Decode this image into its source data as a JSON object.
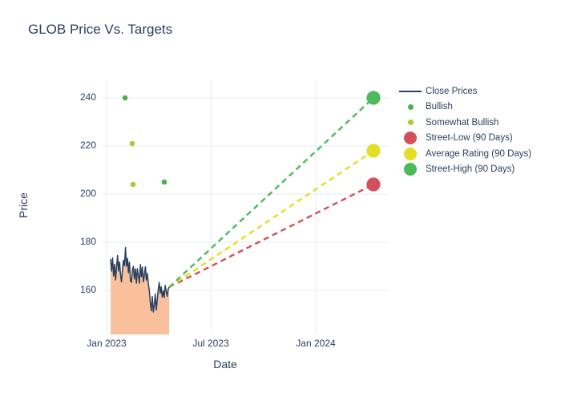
{
  "title": "GLOB Price Vs. Targets",
  "axes": {
    "x": {
      "title": "Date",
      "ticks": [
        "Jan 2023",
        "Jul 2023",
        "Jan 2024"
      ]
    },
    "y": {
      "title": "Price",
      "ticks": [
        "240",
        "220",
        "200",
        "180",
        "160"
      ]
    }
  },
  "legend": {
    "items": [
      {
        "label": "Close Prices",
        "marker": "line",
        "color": "#2b3f5e"
      },
      {
        "label": "Bullish",
        "marker": "dot-small",
        "color": "#47b44d"
      },
      {
        "label": "Somewhat Bullish",
        "marker": "dot-small",
        "color": "#a5ce33"
      },
      {
        "label": "Street-Low (90 Days)",
        "marker": "dot-large",
        "color": "#d2505a"
      },
      {
        "label": "Average Rating (90 Days)",
        "marker": "dot-large",
        "color": "#e2df26"
      },
      {
        "label": "Street-High (90 Days)",
        "marker": "dot-large",
        "color": "#4cba5d"
      }
    ]
  },
  "colors": {
    "text": "#2a3f5f",
    "grid": "#ebf0f8",
    "close_line": "#2b3f5e",
    "close_area_fill": "#f9c19b",
    "bullish": "#47b44d",
    "somewhat_bullish": "#a5ce33",
    "street_low": "#d2505a",
    "average_rating": "#e2df26",
    "street_high": "#4cba5d",
    "background": "#ffffff"
  },
  "chart_data": {
    "type": "line",
    "title": "GLOB Price Vs. Targets",
    "xlabel": "Date",
    "ylabel": "Price",
    "x_ticks": [
      {
        "label": "Jan 2023",
        "month": 0
      },
      {
        "label": "Jul 2023",
        "month": 6
      },
      {
        "label": "Jan 2024",
        "month": 12
      }
    ],
    "y_ticks": [
      160,
      180,
      200,
      220,
      240
    ],
    "ylim": [
      142,
      247
    ],
    "xlim_months": [
      -0.25,
      16.2
    ],
    "grid": true,
    "legend_position": "right",
    "series": [
      {
        "name": "Close Prices",
        "type": "line",
        "color": "#2b3f5e",
        "area_fill": "#f9c19b",
        "x_month_start": 0.23,
        "x_month_end": 3.59,
        "values": [
          172.8,
          168.0,
          173.5,
          166.0,
          170.8,
          164.3,
          169.5,
          174.5,
          168.0,
          171.8,
          166.3,
          163.5,
          169.0,
          172.5,
          170.2,
          177.8,
          170.0,
          173.3,
          167.3,
          171.7,
          164.0,
          163.3,
          168.5,
          170.0,
          164.7,
          168.9,
          163.0,
          169.0,
          166.0,
          163.0,
          170.7,
          165.7,
          169.7,
          163.5,
          166.3,
          169.8,
          164.2,
          167.0,
          162.8,
          160.0,
          155.2,
          151.5,
          157.5,
          151.0,
          153.8,
          158.5,
          151.8,
          156.0,
          160.5,
          163.3,
          158.8,
          161.5,
          157.2,
          159.8,
          157.0,
          162.0,
          159.5,
          157.5,
          160.5,
          161.3
        ]
      },
      {
        "name": "Bullish",
        "type": "scatter",
        "color": "#47b44d",
        "points": [
          {
            "month": 1.06,
            "price": 240
          },
          {
            "month": 3.31,
            "price": 205
          }
        ]
      },
      {
        "name": "Somewhat Bullish",
        "type": "scatter",
        "color": "#a5ce33",
        "points": [
          {
            "month": 1.47,
            "price": 221
          },
          {
            "month": 1.52,
            "price": 204
          }
        ]
      },
      {
        "name": "Street-Low (90 Days)",
        "type": "target",
        "color": "#d2505a",
        "line_dash": "dash",
        "point": {
          "month": 15.31,
          "price": 204
        }
      },
      {
        "name": "Average Rating (90 Days)",
        "type": "target",
        "color": "#e2df26",
        "line_dash": "dash",
        "point": {
          "month": 15.31,
          "price": 218
        }
      },
      {
        "name": "Street-High (90 Days)",
        "type": "target",
        "color": "#4cba5d",
        "line_dash": "dash",
        "point": {
          "month": 15.31,
          "price": 240
        }
      }
    ],
    "projection_origin": {
      "month": 3.59,
      "price": 161.3
    }
  }
}
